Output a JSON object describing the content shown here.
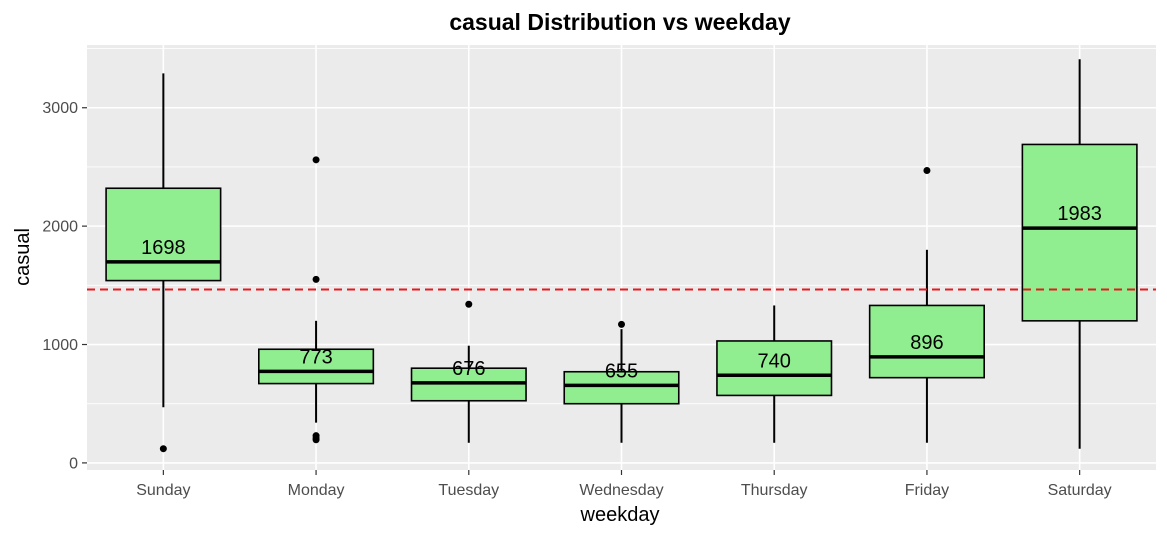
{
  "chart_data": {
    "type": "box",
    "title": "casual  Distribution vs  weekday",
    "xlabel": "weekday",
    "ylabel": "casual",
    "ylim": [
      -60,
      3530
    ],
    "yticks": [
      0,
      1000,
      2000,
      3000
    ],
    "grid": true,
    "legend": "none",
    "categories": [
      "Sunday",
      "Monday",
      "Tuesday",
      "Wednesday",
      "Thursday",
      "Friday",
      "Saturday"
    ],
    "boxes": [
      {
        "category": "Sunday",
        "min": 470,
        "q1": 1540,
        "median": 1698,
        "q3": 2320,
        "max": 3290,
        "outliers": [
          120
        ],
        "label": "1698"
      },
      {
        "category": "Monday",
        "min": 340,
        "q1": 670,
        "median": 773,
        "q3": 960,
        "max": 1200,
        "outliers": [
          2560,
          1550,
          230,
          210,
          195
        ],
        "label": "773"
      },
      {
        "category": "Tuesday",
        "min": 170,
        "q1": 525,
        "median": 676,
        "q3": 800,
        "max": 990,
        "outliers": [
          1340
        ],
        "label": "676"
      },
      {
        "category": "Wednesday",
        "min": 170,
        "q1": 500,
        "median": 655,
        "q3": 770,
        "max": 1130,
        "outliers": [
          1170
        ],
        "label": "655"
      },
      {
        "category": "Thursday",
        "min": 170,
        "q1": 570,
        "median": 740,
        "q3": 1030,
        "max": 1330,
        "outliers": [],
        "label": "740"
      },
      {
        "category": "Friday",
        "min": 170,
        "q1": 720,
        "median": 896,
        "q3": 1330,
        "max": 1800,
        "outliers": [
          2470
        ],
        "label": "896"
      },
      {
        "category": "Saturday",
        "min": 120,
        "q1": 1200,
        "median": 1983,
        "q3": 2690,
        "max": 3410,
        "outliers": [],
        "label": "1983"
      }
    ],
    "reference_line": {
      "value": 1465,
      "color": "#e41a1c",
      "style": "dashed"
    },
    "colors": {
      "box_fill": "#90ee90",
      "panel_bg": "#ebebeb",
      "grid_major": "#ffffff",
      "outline": "#000000"
    }
  }
}
